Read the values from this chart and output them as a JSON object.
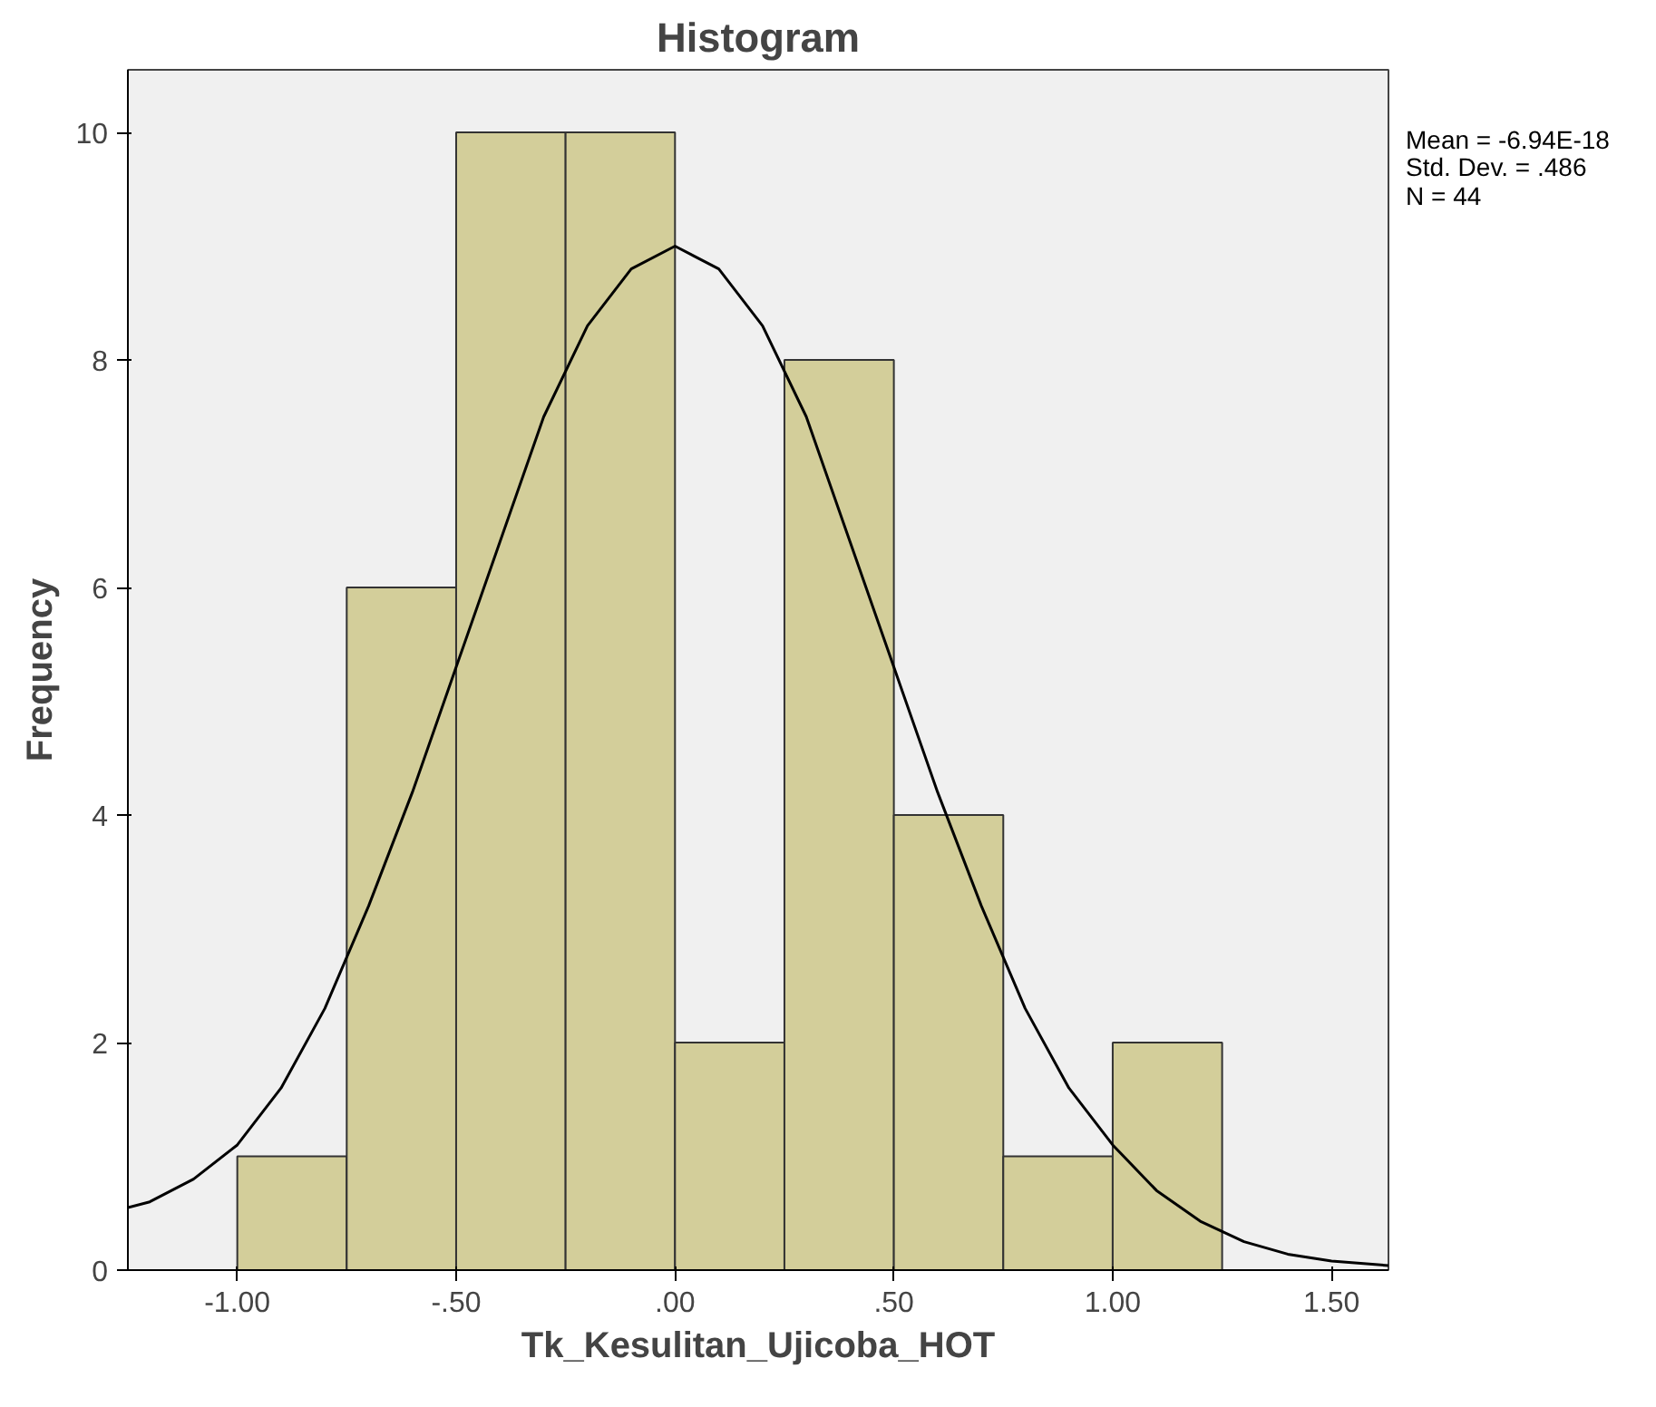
{
  "chart_data": {
    "type": "histogram",
    "title": "Histogram",
    "xlabel": "Tk_Kesulitan_Ujicoba_HOT",
    "ylabel": "Frequency",
    "bins": [
      -1.0,
      -0.75,
      -0.5,
      -0.25,
      0.0,
      0.25,
      0.5,
      0.75,
      1.0,
      1.25
    ],
    "values": [
      1,
      6,
      10,
      10,
      2,
      8,
      4,
      1,
      2
    ],
    "color": "#d3ce9a",
    "series": [
      {
        "type": "line",
        "color": "#000000",
        "x": [
          -1.25,
          -1.2,
          -1.1,
          -1.0,
          -0.9,
          -0.8,
          -0.7,
          -0.6,
          -0.5,
          -0.4,
          -0.3,
          -0.2,
          -0.1,
          0.0,
          0.1,
          0.2,
          0.3,
          0.4,
          0.5,
          0.6,
          0.7,
          0.8,
          0.9,
          1.0,
          1.1,
          1.2,
          1.3,
          1.4,
          1.5,
          1.63
        ],
        "values": [
          0.55,
          0.6,
          0.8,
          1.1,
          1.6,
          2.3,
          3.2,
          4.2,
          5.3,
          6.4,
          7.5,
          8.3,
          8.8,
          9.0,
          8.8,
          8.3,
          7.5,
          6.4,
          5.3,
          4.2,
          3.2,
          2.3,
          1.6,
          1.1,
          0.7,
          0.43,
          0.25,
          0.14,
          0.08,
          0.04
        ]
      }
    ],
    "xlim": [
      -1.25,
      1.63
    ],
    "ylim": [
      0,
      10.55
    ],
    "xticks": [
      {
        "value": -1.0,
        "label": "-1.00"
      },
      {
        "value": -0.5,
        "label": "-.50"
      },
      {
        "value": 0.0,
        "label": ".00"
      },
      {
        "value": 0.5,
        "label": ".50"
      },
      {
        "value": 1.0,
        "label": "1.00"
      },
      {
        "value": 1.5,
        "label": "1.50"
      }
    ],
    "yticks": [
      0,
      2,
      4,
      6,
      8,
      10
    ],
    "grid": false,
    "annotations": [
      "Mean = -6.94E-18",
      "Std. Dev. = .486",
      "N = 44"
    ]
  }
}
